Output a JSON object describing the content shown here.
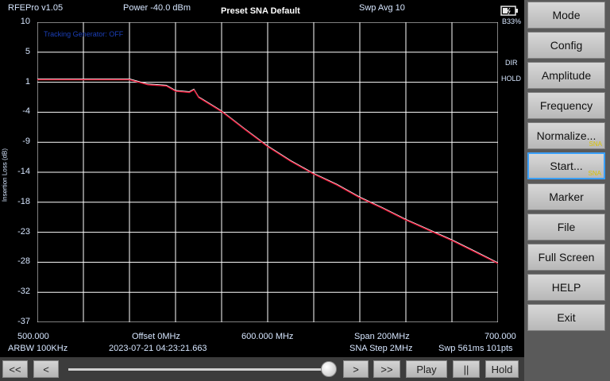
{
  "header": {
    "app_version": "RFEPro v1.05",
    "power": "Power -40.0 dBm",
    "preset": "Preset SNA Default",
    "sweep_avg": "Swp Avg 10",
    "battery": "B33%"
  },
  "indicators": {
    "dir": "DIR",
    "hold": "HOLD"
  },
  "plot": {
    "legend_text": "Tracking Generator: OFF",
    "ylabel": "Insertion Loss (dB)",
    "yticks": [
      "10",
      "5",
      "1",
      "-4",
      "-9",
      "-14",
      "-18",
      "-23",
      "-28",
      "-32",
      "-37"
    ]
  },
  "footer": {
    "start_freq": "500.000",
    "center_freq": "600.000 MHz",
    "stop_freq": "700.000",
    "offset": "Offset 0MHz",
    "span": "Span 200MHz",
    "rbw": "ARBW 100KHz",
    "timestamp": "2023-07-21 04:23:21.663",
    "step": "SNA Step 2MHz",
    "sweep": "Swp 561ms  101pts"
  },
  "sidebar": {
    "buttons": [
      {
        "label": "Mode",
        "tag": ""
      },
      {
        "label": "Config",
        "tag": ""
      },
      {
        "label": "Amplitude",
        "tag": ""
      },
      {
        "label": "Frequency",
        "tag": ""
      },
      {
        "label": "Normalize...",
        "tag": "SNA"
      },
      {
        "label": "Start...",
        "tag": "SNA"
      },
      {
        "label": "Marker",
        "tag": ""
      },
      {
        "label": "File",
        "tag": ""
      },
      {
        "label": "Full Screen",
        "tag": ""
      },
      {
        "label": "HELP",
        "tag": ""
      },
      {
        "label": "Exit",
        "tag": ""
      }
    ]
  },
  "bottom": {
    "rewind_fast": "<<",
    "rewind": "<",
    "forward": ">",
    "forward_fast": ">>",
    "play": "Play",
    "pause": "||",
    "hold": "Hold",
    "slider_position": 0.98
  },
  "colors": {
    "grid": "#ffffff",
    "trace_main": "#e01030",
    "trace_avg": "#ffffff",
    "sidebar_active_border": "#3aa0ff"
  },
  "chart_data": {
    "type": "line",
    "title": "",
    "xlabel": "",
    "ylabel": "Insertion Loss (dB)",
    "xlim": [
      500.0,
      700.0
    ],
    "ylim": [
      -37,
      10
    ],
    "grid": true,
    "series": [
      {
        "x": [
          500,
          520,
          540,
          548,
          556,
          560,
          566,
          568,
          570,
          580,
          590,
          600,
          610,
          620,
          630,
          640,
          650,
          660,
          670,
          680,
          690,
          700
        ],
        "values": [
          1,
          1,
          1,
          0.2,
          0,
          -0.8,
          -1,
          -0.6,
          -1.8,
          -4,
          -6.8,
          -9.5,
          -11.8,
          -13.8,
          -15.5,
          -17.5,
          -19.2,
          -21,
          -22.6,
          -24.2,
          -26,
          -27.8
        ]
      }
    ]
  }
}
